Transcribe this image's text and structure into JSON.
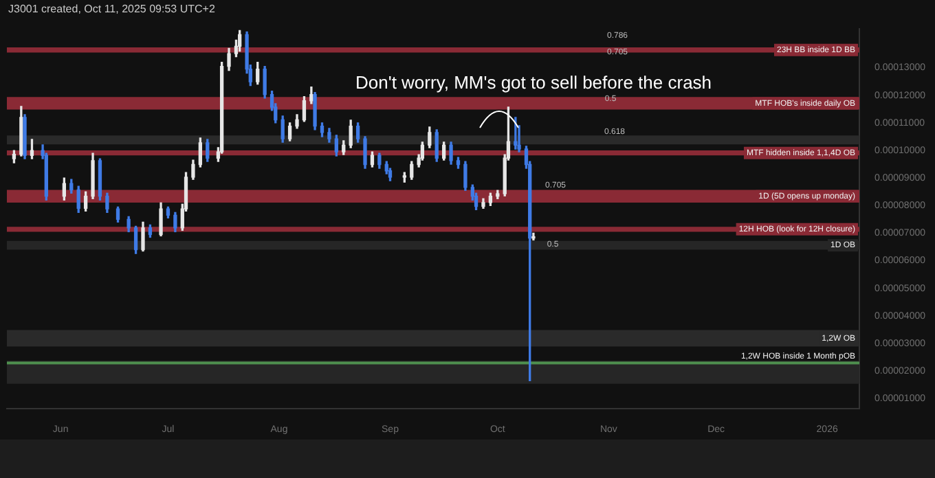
{
  "chart_data": {
    "type": "candlestick",
    "subtitle": "J3001 created, Oct 11, 2025 09:53 UTC+2",
    "x": [
      "2025-05-19",
      "2025-05-21",
      "2025-05-22",
      "2025-05-24",
      "2025-05-27",
      "2025-05-28",
      "2025-06-02",
      "2025-06-04",
      "2025-06-06",
      "2025-06-08",
      "2025-06-10",
      "2025-06-12",
      "2025-06-14",
      "2025-06-17",
      "2025-06-20",
      "2025-06-22",
      "2025-06-24",
      "2025-06-26",
      "2025-06-29",
      "2025-07-01",
      "2025-07-03",
      "2025-07-05",
      "2025-07-06",
      "2025-07-08",
      "2025-07-10",
      "2025-07-12",
      "2025-07-15",
      "2025-07-16",
      "2025-07-18",
      "2025-07-20",
      "2025-07-21",
      "2025-07-23",
      "2025-07-24",
      "2025-07-26",
      "2025-07-28",
      "2025-07-30",
      "2025-07-31",
      "2025-08-02",
      "2025-08-04",
      "2025-08-06",
      "2025-08-08",
      "2025-08-10",
      "2025-08-11",
      "2025-08-13",
      "2025-08-15",
      "2025-08-17",
      "2025-08-19",
      "2025-08-21",
      "2025-08-23",
      "2025-08-25",
      "2025-08-27",
      "2025-08-29",
      "2025-08-31",
      "2025-09-01",
      "2025-09-05",
      "2025-09-07",
      "2025-09-09",
      "2025-09-10",
      "2025-09-12",
      "2025-09-14",
      "2025-09-16",
      "2025-09-18",
      "2025-09-20",
      "2025-09-22",
      "2025-09-24",
      "2025-09-25",
      "2025-09-27",
      "2025-09-29",
      "2025-10-01",
      "2025-10-03",
      "2025-10-04",
      "2025-10-06",
      "2025-10-07",
      "2025-10-09",
      "2025-10-10",
      "2025-10-11"
    ],
    "ohlc": [
      [
        9.7e-05,
        0.0001,
        9.55e-05,
        9.86e-05
      ],
      [
        9.86e-05,
        0.000116,
        9.8e-05,
        0.000112
      ],
      [
        0.000112,
        0.000113,
        9.7e-05,
        9.82e-05
      ],
      [
        9.82e-05,
        0.000104,
        9.7e-05,
        0.0001
      ],
      [
        0.0001,
        0.000102,
        9.7e-05,
        9.82e-05
      ],
      [
        9.82e-05,
        9.9e-05,
        8.2e-05,
        8.34e-05
      ],
      [
        8.34e-05,
        9e-05,
        8.2e-05,
        8.8e-05
      ],
      [
        8.8e-05,
        8.95e-05,
        8.45e-05,
        8.57e-05
      ],
      [
        8.57e-05,
        8.7e-05,
        7.75e-05,
        7.9e-05
      ],
      [
        7.9e-05,
        8.5e-05,
        7.8e-05,
        8.34e-05
      ],
      [
        8.34e-05,
        9.9e-05,
        8.25e-05,
        9.63e-05
      ],
      [
        9.63e-05,
        9.7e-05,
        8.2e-05,
        8.34e-05
      ],
      [
        8.34e-05,
        8.45e-05,
        7.75e-05,
        7.88e-05
      ],
      [
        7.88e-05,
        7.95e-05,
        7.4e-05,
        7.5e-05
      ],
      [
        7.5e-05,
        7.6e-05,
        7.05e-05,
        7.19e-05
      ],
      [
        7.19e-05,
        7.25e-05,
        6.26e-05,
        6.4e-05
      ],
      [
        6.4e-05,
        7.4e-05,
        6.35e-05,
        7.19e-05
      ],
      [
        7.19e-05,
        7.3e-05,
        6.85e-05,
        6.95e-05
      ],
      [
        6.95e-05,
        8.1e-05,
        6.9e-05,
        7.88e-05
      ],
      [
        7.88e-05,
        7.95e-05,
        7.55e-05,
        7.65e-05
      ],
      [
        7.65e-05,
        7.75e-05,
        7.05e-05,
        7.19e-05
      ],
      [
        7.19e-05,
        8.05e-05,
        7.1e-05,
        7.88e-05
      ],
      [
        7.88e-05,
        9.2e-05,
        7.8e-05,
        9.03e-05
      ],
      [
        9.03e-05,
        9.65e-05,
        8.95e-05,
        9.49e-05
      ],
      [
        9.49e-05,
        0.0001045,
        9.4e-05,
        0.0001028
      ],
      [
        0.0001028,
        0.000104,
        9.6e-05,
        9.72e-05
      ],
      [
        9.72e-05,
        0.000101,
        9.6e-05,
        9.95e-05
      ],
      [
        9.95e-05,
        0.000132,
        9.9e-05,
        0.0001305
      ],
      [
        0.0001305,
        0.000137,
        0.000129,
        0.0001351
      ],
      [
        0.0001351,
        0.00014,
        0.000134,
        0.0001378
      ],
      [
        0.0001378,
        0.0001435,
        0.000136,
        0.000142
      ],
      [
        0.000142,
        0.000143,
        0.000128,
        0.0001295
      ],
      [
        0.0001295,
        0.000131,
        0.0001235,
        0.0001249
      ],
      [
        0.0001249,
        0.000132,
        0.000124,
        0.0001295
      ],
      [
        0.0001295,
        0.0001305,
        0.000119,
        0.0001203
      ],
      [
        0.0001203,
        0.0001215,
        0.0001145,
        0.0001157
      ],
      [
        0.0001157,
        0.000117,
        0.00011,
        0.0001111
      ],
      [
        0.0001111,
        0.0001125,
        0.000103,
        0.0001042
      ],
      [
        0.0001042,
        0.00011,
        0.0001035,
        0.0001088
      ],
      [
        0.0001088,
        0.000113,
        0.000108,
        0.0001111
      ],
      [
        0.0001111,
        0.0001195,
        0.0001105,
        0.000118
      ],
      [
        0.000118,
        0.000123,
        0.000117,
        0.0001203
      ],
      [
        0.0001203,
        0.000121,
        0.0001075,
        0.0001088
      ],
      [
        0.0001088,
        0.00011,
        0.000105,
        0.0001065
      ],
      [
        0.0001065,
        0.000108,
        0.000103,
        0.0001042
      ],
      [
        0.0001042,
        0.0001055,
        9.8e-05,
        9.95e-05
      ],
      [
        9.95e-05,
        0.0001035,
        9.85e-05,
        0.0001019
      ],
      [
        0.0001019,
        0.000111,
        0.000101,
        0.0001088
      ],
      [
        0.0001088,
        0.00011,
        0.000103,
        0.0001042
      ],
      [
        0.0001042,
        0.000105,
        9.35e-05,
        9.49e-05
      ],
      [
        9.49e-05,
        9.95e-05,
        9.4e-05,
        9.82e-05
      ],
      [
        9.82e-05,
        9.9e-05,
        9.35e-05,
        9.49e-05
      ],
      [
        9.49e-05,
        9.6e-05,
        9.15e-05,
        9.26e-05
      ],
      [
        9.26e-05,
        9.35e-05,
        8.9e-05,
        9.03e-05
      ],
      [
        9.03e-05,
        9.2e-05,
        8.85e-05,
        9.03e-05
      ],
      [
        9.03e-05,
        9.6e-05,
        8.95e-05,
        9.49e-05
      ],
      [
        9.49e-05,
        9.85e-05,
        9.4e-05,
        9.72e-05
      ],
      [
        9.72e-05,
        0.000103,
        9.65e-05,
        0.0001019
      ],
      [
        0.0001019,
        0.0001085,
        0.000101,
        0.0001065
      ],
      [
        0.0001065,
        0.0001075,
        9.6e-05,
        9.72e-05
      ],
      [
        9.72e-05,
        0.000103,
        9.65e-05,
        0.0001019
      ],
      [
        0.0001019,
        0.000103,
        9.5e-05,
        9.63e-05
      ],
      [
        9.63e-05,
        9.75e-05,
        9.35e-05,
        9.49e-05
      ],
      [
        9.49e-05,
        9.6e-05,
        8.55e-05,
        8.66e-05
      ],
      [
        8.66e-05,
        8.75e-05,
        8.2e-05,
        8.34e-05
      ],
      [
        8.34e-05,
        8.45e-05,
        7.85e-05,
        7.97e-05
      ],
      [
        7.97e-05,
        8.25e-05,
        7.9e-05,
        8.11e-05
      ],
      [
        8.11e-05,
        8.45e-05,
        8e-05,
        8.34e-05
      ],
      [
        8.34e-05,
        8.55e-05,
        8.25e-05,
        8.43e-05
      ],
      [
        8.43e-05,
        9.85e-05,
        8.35e-05,
        9.72e-05
      ],
      [
        9.72e-05,
        0.0001157,
        9.65e-05,
        0.0001032
      ],
      [
        0.0001032,
        0.000112,
        0.0001005,
        0.0001019
      ],
      [
        0.0001019,
        0.000109,
        9.95e-05,
        0.0001005
      ],
      [
        0.0001005,
        0.0001015,
        9.35e-05,
        9.49e-05
      ],
      [
        9.49e-05,
        9.6e-05,
        1.65e-05,
        6.82e-05
      ],
      [
        6.82e-05,
        7e-05,
        6.75e-05,
        6.86e-05
      ]
    ],
    "xlim": [
      "2025-05-17",
      "2026-01-10"
    ],
    "xticks": [
      {
        "value": "2025-06-01",
        "label": "Jun"
      },
      {
        "value": "2025-07-01",
        "label": "Jul"
      },
      {
        "value": "2025-08-01",
        "label": "Aug"
      },
      {
        "value": "2025-09-01",
        "label": "Sep"
      },
      {
        "value": "2025-10-01",
        "label": "Oct"
      },
      {
        "value": "2025-11-01",
        "label": "Nov"
      },
      {
        "value": "2025-12-01",
        "label": "Dec"
      },
      {
        "value": "2026-01-01",
        "label": "2026"
      }
    ],
    "ylim": [
      6.3e-06,
      0.000144
    ],
    "yticks": [
      {
        "value": 1e-05,
        "label": "0.00001000"
      },
      {
        "value": 2e-05,
        "label": "0.00002000"
      },
      {
        "value": 3e-05,
        "label": "0.00003000"
      },
      {
        "value": 4e-05,
        "label": "0.00004000"
      },
      {
        "value": 5e-05,
        "label": "0.00005000"
      },
      {
        "value": 6e-05,
        "label": "0.00006000"
      },
      {
        "value": 7e-05,
        "label": "0.00007000"
      },
      {
        "value": 8e-05,
        "label": "0.00008000"
      },
      {
        "value": 9e-05,
        "label": "0.00009000"
      },
      {
        "value": 0.0001,
        "label": "0.00010000"
      },
      {
        "value": 0.00011,
        "label": "0.00011000"
      },
      {
        "value": 0.00012,
        "label": "0.00012000"
      },
      {
        "value": 0.00013,
        "label": "0.00013000"
      }
    ],
    "bands": [
      {
        "axis": "y",
        "from": 0.0001355,
        "to": 0.0001374,
        "label": "23H BB inside 1D BB",
        "color": "#8a2a35"
      },
      {
        "axis": "y",
        "from": 0.0001148,
        "to": 0.0001194,
        "label": "MTF HOB's inside daily OB",
        "color": "#8a2a35"
      },
      {
        "axis": "y",
        "from": 0.0001022,
        "to": 0.0001054,
        "color": "#2a2a2a"
      },
      {
        "axis": "y",
        "from": 9.82e-05,
        "to": 0.0001,
        "label": "MTF hidden inside 1,1,4D OB",
        "color": "#8a2a35"
      },
      {
        "axis": "y",
        "from": 8.11e-05,
        "to": 8.57e-05,
        "label": "1D (5D opens up monday)",
        "color": "#8a2a35"
      },
      {
        "axis": "y",
        "from": 7.05e-05,
        "to": 7.23e-05,
        "label": "12H HOB (look for 12H closure)",
        "color": "#8a2a35"
      },
      {
        "axis": "y",
        "from": 6.4e-05,
        "to": 6.72e-05,
        "label": "1D OB",
        "color": "#262626"
      },
      {
        "axis": "y",
        "from": 2.89e-05,
        "to": 3.49e-05,
        "label": "1,2W OB",
        "color": "#2a2a2a"
      },
      {
        "axis": "y",
        "from": 1.54e-05,
        "to": 2.37e-05,
        "color": "#262626"
      }
    ],
    "ref_lines": [
      {
        "axis": "y",
        "value": 2.29e-05,
        "label": "1,2W HOB inside 1 Month pOB",
        "color": "#4e8f4e"
      }
    ],
    "annotations": [
      "Don't worry, MM's got to sell before the crash",
      "0.786",
      "0.705",
      "0.5",
      "0.618",
      "0.705",
      "0.5"
    ]
  }
}
